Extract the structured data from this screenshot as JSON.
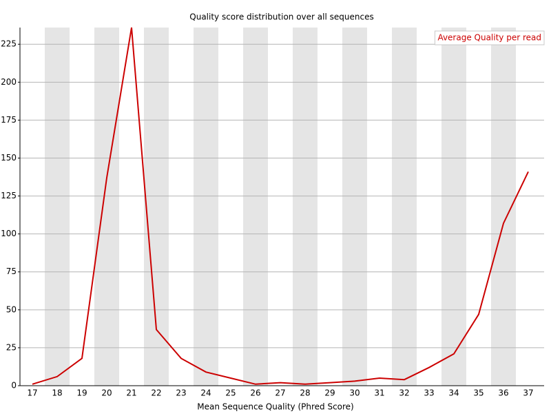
{
  "chart_data": {
    "type": "line",
    "title": "Quality score distribution over all sequences",
    "x_label": "Mean Sequence Quality (Phred Score)",
    "categories": [
      17,
      18,
      19,
      20,
      21,
      22,
      23,
      24,
      25,
      26,
      27,
      28,
      29,
      30,
      31,
      32,
      33,
      34,
      35,
      36,
      37
    ],
    "series": [
      {
        "name": "Average Quality per read",
        "color": "#cc0000",
        "values": [
          1,
          6,
          18,
          137,
          236,
          37,
          18,
          9,
          5,
          1,
          2,
          1,
          2,
          3,
          5,
          4,
          12,
          21,
          47,
          107,
          141
        ]
      }
    ],
    "ylim": [
      0,
      236
    ],
    "yticks": [
      0,
      25,
      50,
      75,
      100,
      125,
      150,
      175,
      200,
      225
    ],
    "grid": true,
    "legend": "top-right"
  }
}
